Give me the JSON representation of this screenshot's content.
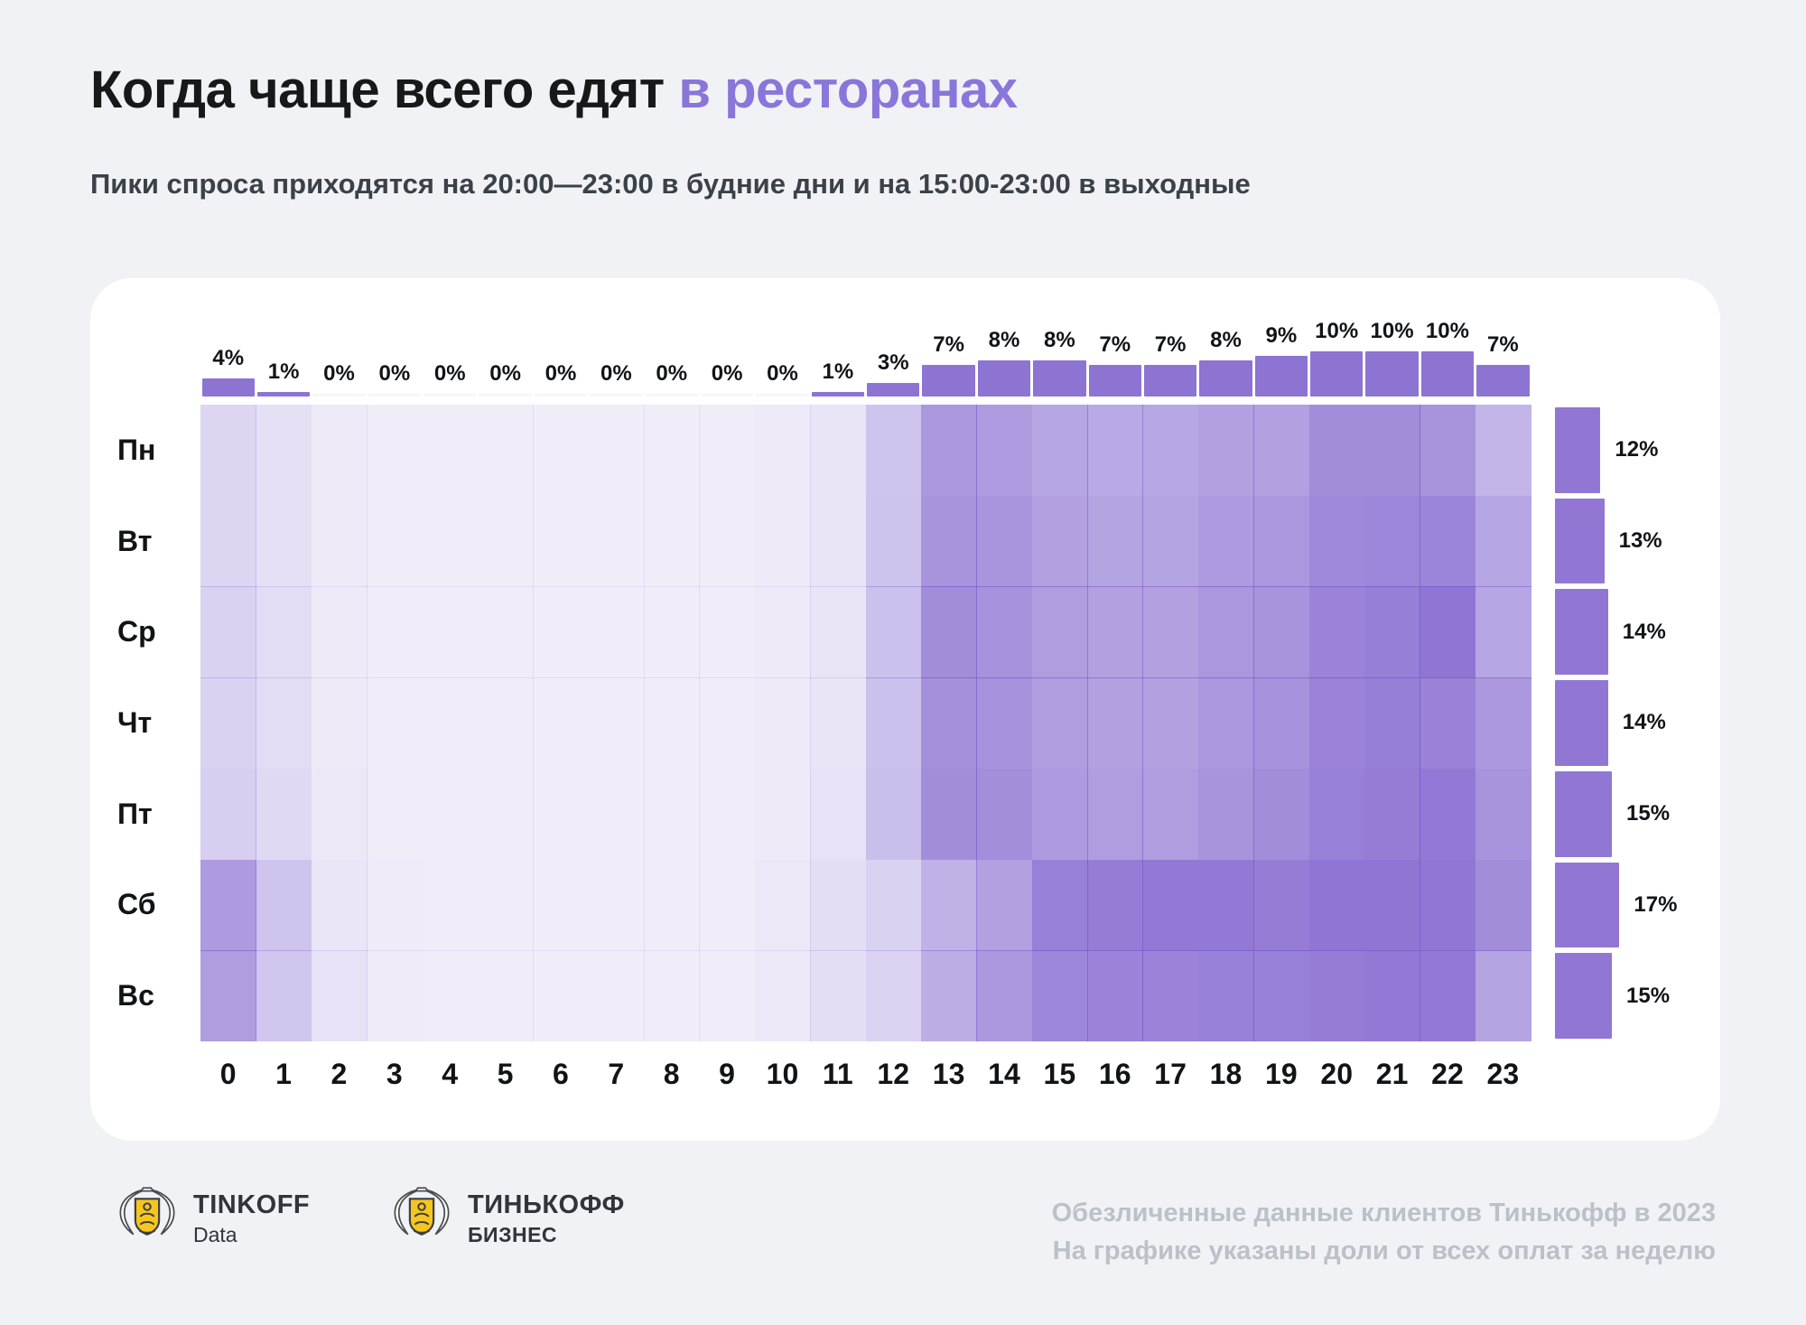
{
  "title": {
    "black_part": "Когда чаще всего едят",
    "accent_part": "в ресторанах"
  },
  "subtitle": "Пики спроса приходятся на 20:00—23:00 в будние дни и на 15:00-23:00 в выходные",
  "colors": {
    "page_bg": "#f1f2f6",
    "card_bg": "#ffffff",
    "accent": "#8a75da",
    "top_bar": "#8d74d3",
    "right_bar": "#9177d3",
    "heat_base_rgb": "122,92,204",
    "footer_text": "#bcc0c8"
  },
  "chart_data": {
    "type": "heatmap",
    "title": "Когда чаще всего едят в ресторанах",
    "subtitle": "Пики спроса приходятся на 20:00—23:00 в будние дни и на 15:00-23:00 в выходные",
    "x_labels": [
      "0",
      "1",
      "2",
      "3",
      "4",
      "5",
      "6",
      "7",
      "8",
      "9",
      "10",
      "11",
      "12",
      "13",
      "14",
      "15",
      "16",
      "17",
      "18",
      "19",
      "20",
      "21",
      "22",
      "23"
    ],
    "y_labels": [
      "Пн",
      "Вт",
      "Ср",
      "Чт",
      "Пт",
      "Сб",
      "Вс"
    ],
    "hour_share_percent": [
      4,
      1,
      0,
      0,
      0,
      0,
      0,
      0,
      0,
      0,
      0,
      1,
      3,
      7,
      8,
      8,
      7,
      7,
      8,
      9,
      10,
      10,
      10,
      7
    ],
    "hour_share_labels": [
      "4%",
      "1%",
      "0%",
      "0%",
      "0%",
      "0%",
      "0%",
      "0%",
      "0%",
      "0%",
      "0%",
      "1%",
      "3%",
      "7%",
      "8%",
      "8%",
      "7%",
      "7%",
      "8%",
      "9%",
      "10%",
      "10%",
      "10%",
      "7%"
    ],
    "day_share_percent": [
      12,
      13,
      14,
      14,
      15,
      17,
      15
    ],
    "day_share_labels": [
      "12%",
      "13%",
      "14%",
      "14%",
      "15%",
      "17%",
      "15%"
    ],
    "heat_intensity_note": "relative color intensity per cell (0-100), estimated from the image; rows = days Пн..Вс, cols = hours 0..23",
    "heat_intensity": [
      [
        26,
        19,
        13,
        11,
        11,
        11,
        11,
        11,
        11,
        11,
        13,
        17,
        36,
        64,
        61,
        55,
        53,
        54,
        58,
        58,
        70,
        70,
        66,
        45
      ],
      [
        26,
        19,
        13,
        11,
        11,
        11,
        11,
        11,
        11,
        11,
        13,
        17,
        37,
        66,
        65,
        58,
        56,
        56,
        62,
        64,
        72,
        74,
        75,
        55
      ],
      [
        28,
        21,
        13,
        11,
        11,
        11,
        11,
        11,
        11,
        11,
        13,
        17,
        38,
        70,
        67,
        60,
        58,
        58,
        64,
        66,
        76,
        79,
        84,
        55
      ],
      [
        28,
        21,
        13,
        11,
        11,
        11,
        11,
        11,
        11,
        11,
        13,
        17,
        38,
        68,
        67,
        60,
        58,
        58,
        64,
        67,
        76,
        79,
        77,
        63
      ],
      [
        30,
        23,
        14,
        11,
        11,
        11,
        11,
        11,
        11,
        11,
        13,
        18,
        40,
        70,
        69,
        62,
        60,
        60,
        66,
        70,
        78,
        80,
        82,
        66
      ],
      [
        62,
        36,
        16,
        12,
        11,
        11,
        11,
        11,
        11,
        11,
        14,
        20,
        28,
        47,
        58,
        78,
        80,
        82,
        82,
        80,
        84,
        84,
        83,
        70
      ],
      [
        60,
        35,
        18,
        12,
        11,
        11,
        11,
        11,
        11,
        11,
        14,
        20,
        27,
        50,
        63,
        74,
        76,
        76,
        78,
        78,
        80,
        82,
        82,
        56
      ]
    ],
    "legend_position": "none",
    "grid": false
  },
  "footer": {
    "logo1": {
      "title": "TINKOFF",
      "subtitle": "Data"
    },
    "logo2": {
      "title": "ТИНЬКОФФ",
      "subtitle": "БИЗНЕС"
    },
    "note_line1": "Обезличенные данные клиентов Тинькофф в 2023",
    "note_line2": "На графике указаны доли от всех оплат за неделю"
  }
}
